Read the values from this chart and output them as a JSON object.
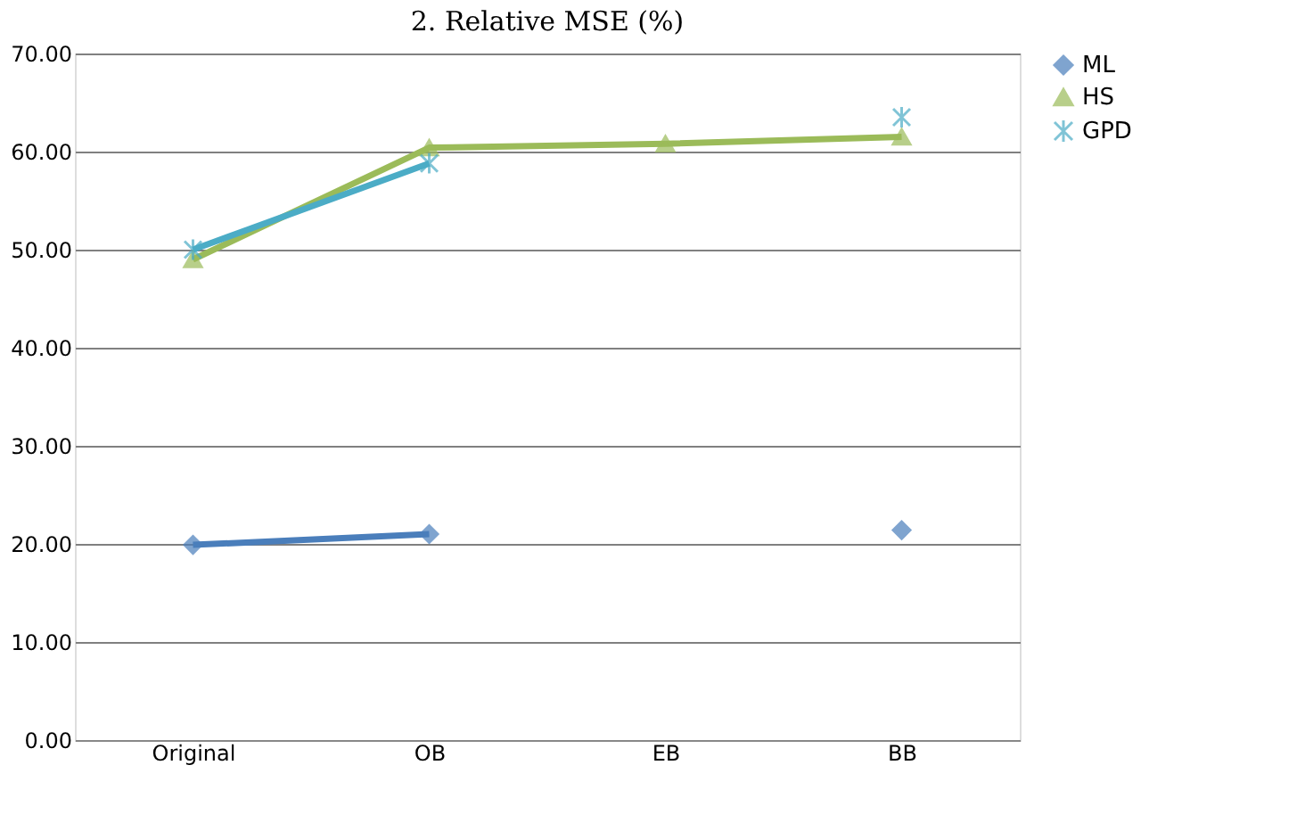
{
  "chart_data": {
    "type": "line",
    "title": "2. Relative MSE (%)",
    "categories": [
      "Original",
      "OB",
      "EB",
      "BB"
    ],
    "series": [
      {
        "name": "ML",
        "color": "#4a7ebb",
        "marker": "diamond",
        "values": [
          19.9,
          21.0,
          null,
          21.4
        ]
      },
      {
        "name": "HS",
        "color": "#9bbb59",
        "marker": "triangle",
        "values": [
          49.0,
          60.4,
          60.8,
          61.5
        ]
      },
      {
        "name": "GPD",
        "color": "#4bacc6",
        "marker": "cross",
        "values": [
          50.0,
          58.8,
          null,
          63.5
        ]
      }
    ],
    "ylim": [
      0,
      70
    ],
    "yticks": [
      {
        "value": 0,
        "label": "0.00"
      },
      {
        "value": 10,
        "label": "10.00"
      },
      {
        "value": 20,
        "label": "20.00"
      },
      {
        "value": 30,
        "label": "30.00"
      },
      {
        "value": 40,
        "label": "40.00"
      },
      {
        "value": 50,
        "label": "50.00"
      },
      {
        "value": 60,
        "label": "60.00"
      },
      {
        "value": 70,
        "label": "70.00"
      }
    ],
    "grid": "y",
    "legend": "right",
    "line_style": "solid"
  }
}
